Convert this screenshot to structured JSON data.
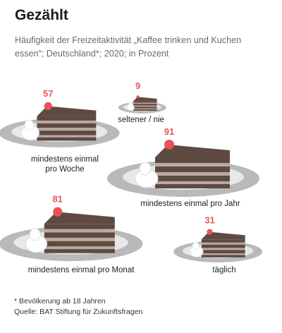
{
  "header": {
    "title": "Gezählt",
    "subtitle": "Häufigkeit der Freizeitaktivität „Kaffee trinken und Kuchen essen“; Deutschland*; 2020; in Prozent"
  },
  "footnote": {
    "note": "* Bevölkerung ab 18 Jahren",
    "source": "Quelle: BAT Stiftung für Zukunftsfragen"
  },
  "colors": {
    "accent": "#e8525a",
    "cake_dark": "#5e4a41",
    "cake_light": "#b9aaa1",
    "plate": "#b9b9b9",
    "plate_inner": "#e8e8e8",
    "cream": "#ffffff"
  },
  "chart_data": {
    "type": "pictogram",
    "unit": "%",
    "categories": [
      "mindestens einmal pro Woche",
      "seltener / nie",
      "mindestens einmal pro Jahr",
      "mindestens einmal pro Monat",
      "täglich"
    ],
    "values": [
      57,
      9,
      91,
      81,
      31
    ],
    "labels": [
      "mindestens einmal\npro Woche",
      "seltener / nie",
      "mindestens einmal pro Jahr",
      "mindestens einmal pro Monat",
      "täglich"
    ]
  }
}
